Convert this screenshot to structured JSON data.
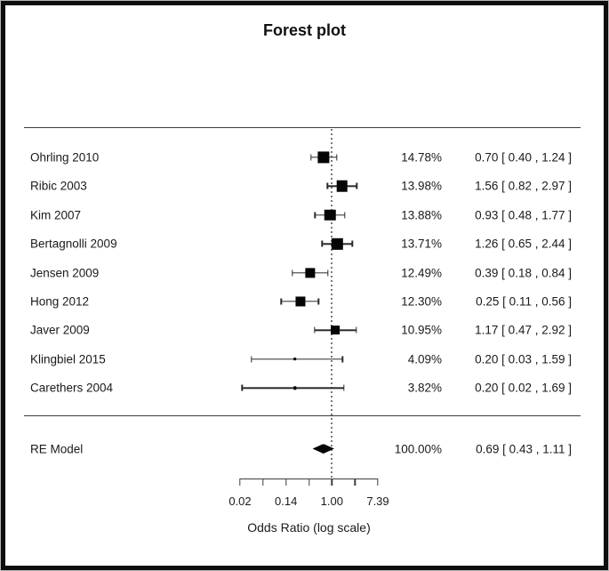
{
  "title": "Forest plot",
  "chart_data": {
    "type": "forest",
    "title": "Forest plot",
    "xlabel": "Odds Ratio (log scale)",
    "x_scale": "log",
    "x_axis": {
      "tick_values": [
        0.02,
        0.05,
        0.14,
        0.37,
        1.0,
        2.72,
        7.39
      ],
      "labeled_ticks": [
        {
          "index": 0,
          "label": "0.02"
        },
        {
          "index": 2,
          "label": "0.14"
        },
        {
          "index": 4,
          "label": "1.00"
        },
        {
          "index": 6,
          "label": "7.39"
        }
      ],
      "range_log": [
        -4,
        2
      ]
    },
    "reference_line": 1.0,
    "studies": [
      {
        "label": "Ohrling 2010",
        "weight": 14.78,
        "weight_label": "14.78%",
        "or": 0.7,
        "ci_lo": 0.4,
        "ci_hi": 1.24,
        "estimate_text": "0.70 [ 0.40 , 1.24 ]"
      },
      {
        "label": "Ribic 2003",
        "weight": 13.98,
        "weight_label": "13.98%",
        "or": 1.56,
        "ci_lo": 0.82,
        "ci_hi": 2.97,
        "estimate_text": "1.56 [ 0.82 , 2.97 ]"
      },
      {
        "label": "Kim 2007",
        "weight": 13.88,
        "weight_label": "13.88%",
        "or": 0.93,
        "ci_lo": 0.48,
        "ci_hi": 1.77,
        "estimate_text": "0.93 [ 0.48 , 1.77 ]"
      },
      {
        "label": "Bertagnolli 2009",
        "weight": 13.71,
        "weight_label": "13.71%",
        "or": 1.26,
        "ci_lo": 0.65,
        "ci_hi": 2.44,
        "estimate_text": "1.26 [ 0.65 , 2.44 ]"
      },
      {
        "label": "Jensen 2009",
        "weight": 12.49,
        "weight_label": "12.49%",
        "or": 0.39,
        "ci_lo": 0.18,
        "ci_hi": 0.84,
        "estimate_text": "0.39 [ 0.18 , 0.84 ]"
      },
      {
        "label": "Hong 2012",
        "weight": 12.3,
        "weight_label": "12.30%",
        "or": 0.25,
        "ci_lo": 0.11,
        "ci_hi": 0.56,
        "estimate_text": "0.25 [ 0.11 , 0.56 ]"
      },
      {
        "label": "Javer 2009",
        "weight": 10.95,
        "weight_label": "10.95%",
        "or": 1.17,
        "ci_lo": 0.47,
        "ci_hi": 2.92,
        "estimate_text": "1.17 [ 0.47 , 2.92 ]"
      },
      {
        "label": "Klingbiel 2015",
        "weight": 4.09,
        "weight_label": "4.09%",
        "or": 0.2,
        "ci_lo": 0.03,
        "ci_hi": 1.59,
        "estimate_text": "0.20 [ 0.03 , 1.59 ]"
      },
      {
        "label": "Carethers 2004",
        "weight": 3.82,
        "weight_label": "3.82%",
        "or": 0.2,
        "ci_lo": 0.02,
        "ci_hi": 1.69,
        "estimate_text": "0.20 [ 0.02 , 1.69 ]"
      }
    ],
    "summary": {
      "label": "RE Model",
      "weight_label": "100.00%",
      "or": 0.69,
      "ci_lo": 0.43,
      "ci_hi": 1.11,
      "estimate_text": "0.69 [ 0.43 , 1.11 ]"
    }
  },
  "colors": {
    "ink": "#1a1a1a",
    "marker": "#050505",
    "axis": "#3d3d3d",
    "reference_dotted": "#7a7a7a",
    "frame": "#0d0d0d",
    "background": "#ffffff"
  }
}
